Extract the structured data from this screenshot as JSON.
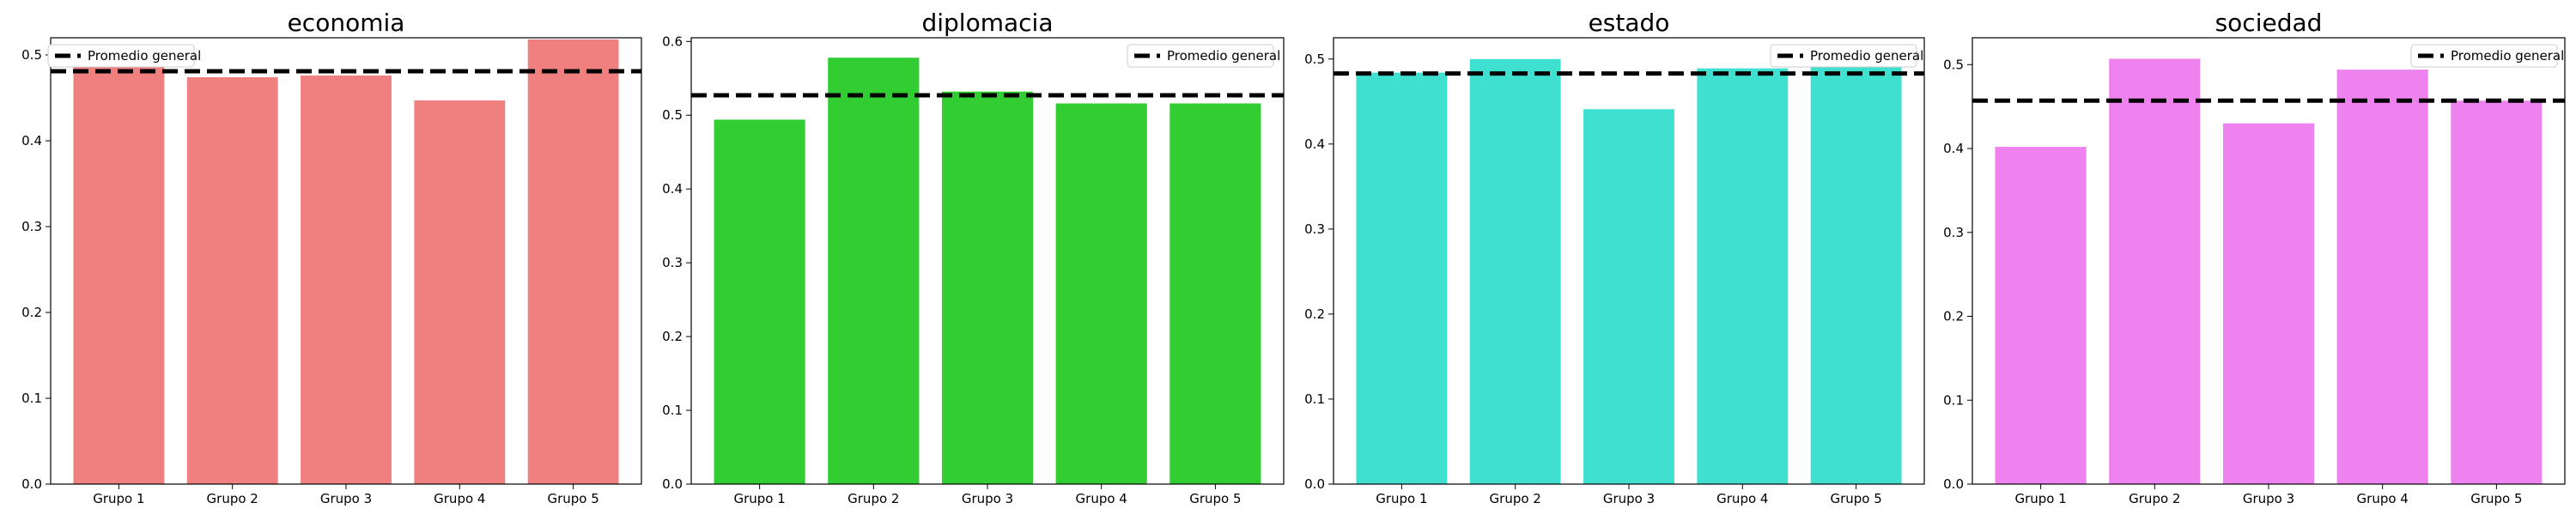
{
  "chart_data": [
    {
      "type": "bar",
      "title": "economia",
      "color": "#F08080",
      "categories": [
        "Grupo 1",
        "Grupo 2",
        "Grupo 3",
        "Grupo 4",
        "Grupo 5"
      ],
      "values": [
        0.493,
        0.474,
        0.476,
        0.447,
        0.518
      ],
      "reference_line": {
        "label": "Promedio general",
        "value": 0.481,
        "style": "dashed",
        "color": "#000000"
      },
      "ylim": [
        0,
        0.52
      ],
      "yticks": [
        0.0,
        0.1,
        0.2,
        0.3,
        0.4,
        0.5
      ],
      "ytick_labels": [
        "0.0",
        "0.1",
        "0.2",
        "0.3",
        "0.4",
        "0.5"
      ],
      "legend_position": "top-left"
    },
    {
      "type": "bar",
      "title": "diplomacia",
      "color": "#32CD32",
      "categories": [
        "Grupo 1",
        "Grupo 2",
        "Grupo 3",
        "Grupo 4",
        "Grupo 5"
      ],
      "values": [
        0.494,
        0.578,
        0.532,
        0.516,
        0.516
      ],
      "reference_line": {
        "label": "Promedio general",
        "value": 0.527,
        "style": "dashed",
        "color": "#000000"
      },
      "ylim": [
        0,
        0.605
      ],
      "yticks": [
        0.0,
        0.1,
        0.2,
        0.3,
        0.4,
        0.5,
        0.6
      ],
      "ytick_labels": [
        "0.0",
        "0.1",
        "0.2",
        "0.3",
        "0.4",
        "0.5",
        "0.6"
      ],
      "legend_position": "top-right"
    },
    {
      "type": "bar",
      "title": "estado",
      "color": "#40E0D0",
      "categories": [
        "Grupo 1",
        "Grupo 2",
        "Grupo 3",
        "Grupo 4",
        "Grupo 5"
      ],
      "values": [
        0.484,
        0.5,
        0.441,
        0.489,
        0.497
      ],
      "reference_line": {
        "label": "Promedio general",
        "value": 0.483,
        "style": "dashed",
        "color": "#000000"
      },
      "ylim": [
        0,
        0.525
      ],
      "yticks": [
        0.0,
        0.1,
        0.2,
        0.3,
        0.4,
        0.5
      ],
      "ytick_labels": [
        "0.0",
        "0.1",
        "0.2",
        "0.3",
        "0.4",
        "0.5"
      ],
      "legend_position": "top-right"
    },
    {
      "type": "bar",
      "title": "sociedad",
      "color": "#EE82EE",
      "categories": [
        "Grupo 1",
        "Grupo 2",
        "Grupo 3",
        "Grupo 4",
        "Grupo 5"
      ],
      "values": [
        0.402,
        0.507,
        0.43,
        0.494,
        0.457
      ],
      "reference_line": {
        "label": "Promedio general",
        "value": 0.457,
        "style": "dashed",
        "color": "#000000"
      },
      "ylim": [
        0,
        0.532
      ],
      "yticks": [
        0.0,
        0.1,
        0.2,
        0.3,
        0.4,
        0.5
      ],
      "ytick_labels": [
        "0.0",
        "0.1",
        "0.2",
        "0.3",
        "0.4",
        "0.5"
      ],
      "legend_position": "top-right"
    }
  ]
}
